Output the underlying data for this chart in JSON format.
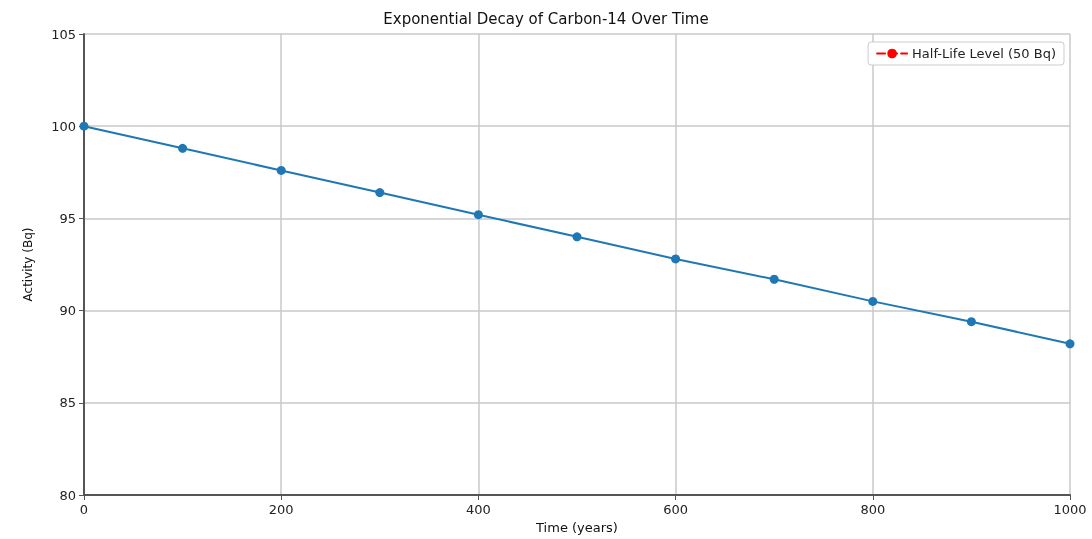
{
  "chart_data": {
    "type": "line",
    "title": "Exponential Decay of Carbon-14 Over Time",
    "xlabel": "Time (years)",
    "ylabel": "Activity (Bq)",
    "x": [
      0,
      100,
      200,
      300,
      400,
      500,
      600,
      700,
      800,
      900,
      1000
    ],
    "series": [
      {
        "color": "#1f77b4",
        "marker": "circle",
        "line_style": "solid",
        "values": [
          100,
          98.8,
          97.6,
          96.4,
          95.2,
          94.0,
          92.8,
          91.7,
          90.5,
          89.4,
          88.2
        ]
      },
      {
        "name": "Half-Life Level (50 Bq)",
        "color": "#ff0000",
        "marker": "none",
        "line_style": "dashed",
        "values": [
          null,
          null,
          null,
          null,
          null,
          null,
          null,
          null,
          null,
          null,
          null
        ]
      }
    ],
    "xlim": [
      0,
      1000
    ],
    "xticks": [
      0,
      200,
      400,
      600,
      800,
      1000
    ],
    "ylim": [
      80,
      105
    ],
    "yticks": [
      80,
      85,
      90,
      95,
      100,
      105
    ],
    "grid": true,
    "legend": "top right"
  }
}
